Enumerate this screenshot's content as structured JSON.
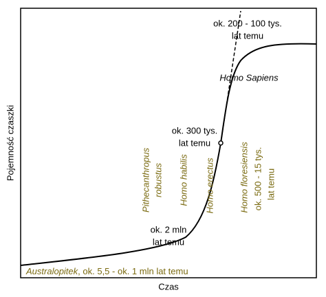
{
  "axes": {
    "x_label": "Czas",
    "y_label": "Pojemność czaszki"
  },
  "annotations": {
    "recent": [
      "ok. 200 - 100 tys.",
      "lat temu"
    ],
    "homo_sapiens": "Homo Sapiens",
    "point_300": [
      "ok. 300 tys.",
      "lat temu"
    ],
    "point_2mln": [
      "ok. 2 mln",
      "lat temu"
    ],
    "pithecanthropus": [
      "Pithecanthropus",
      "robustus"
    ],
    "habilis": "Homo habilis",
    "erectus": "Homo erectus",
    "floresiensis": [
      "Homo floresiensis",
      "ok. 500  - 15 tys.",
      "lat temu"
    ],
    "australopitek": {
      "name": "Australopitek",
      "rest": ", ok. 5,5 - ok. 1 mln lat temu"
    }
  }
}
